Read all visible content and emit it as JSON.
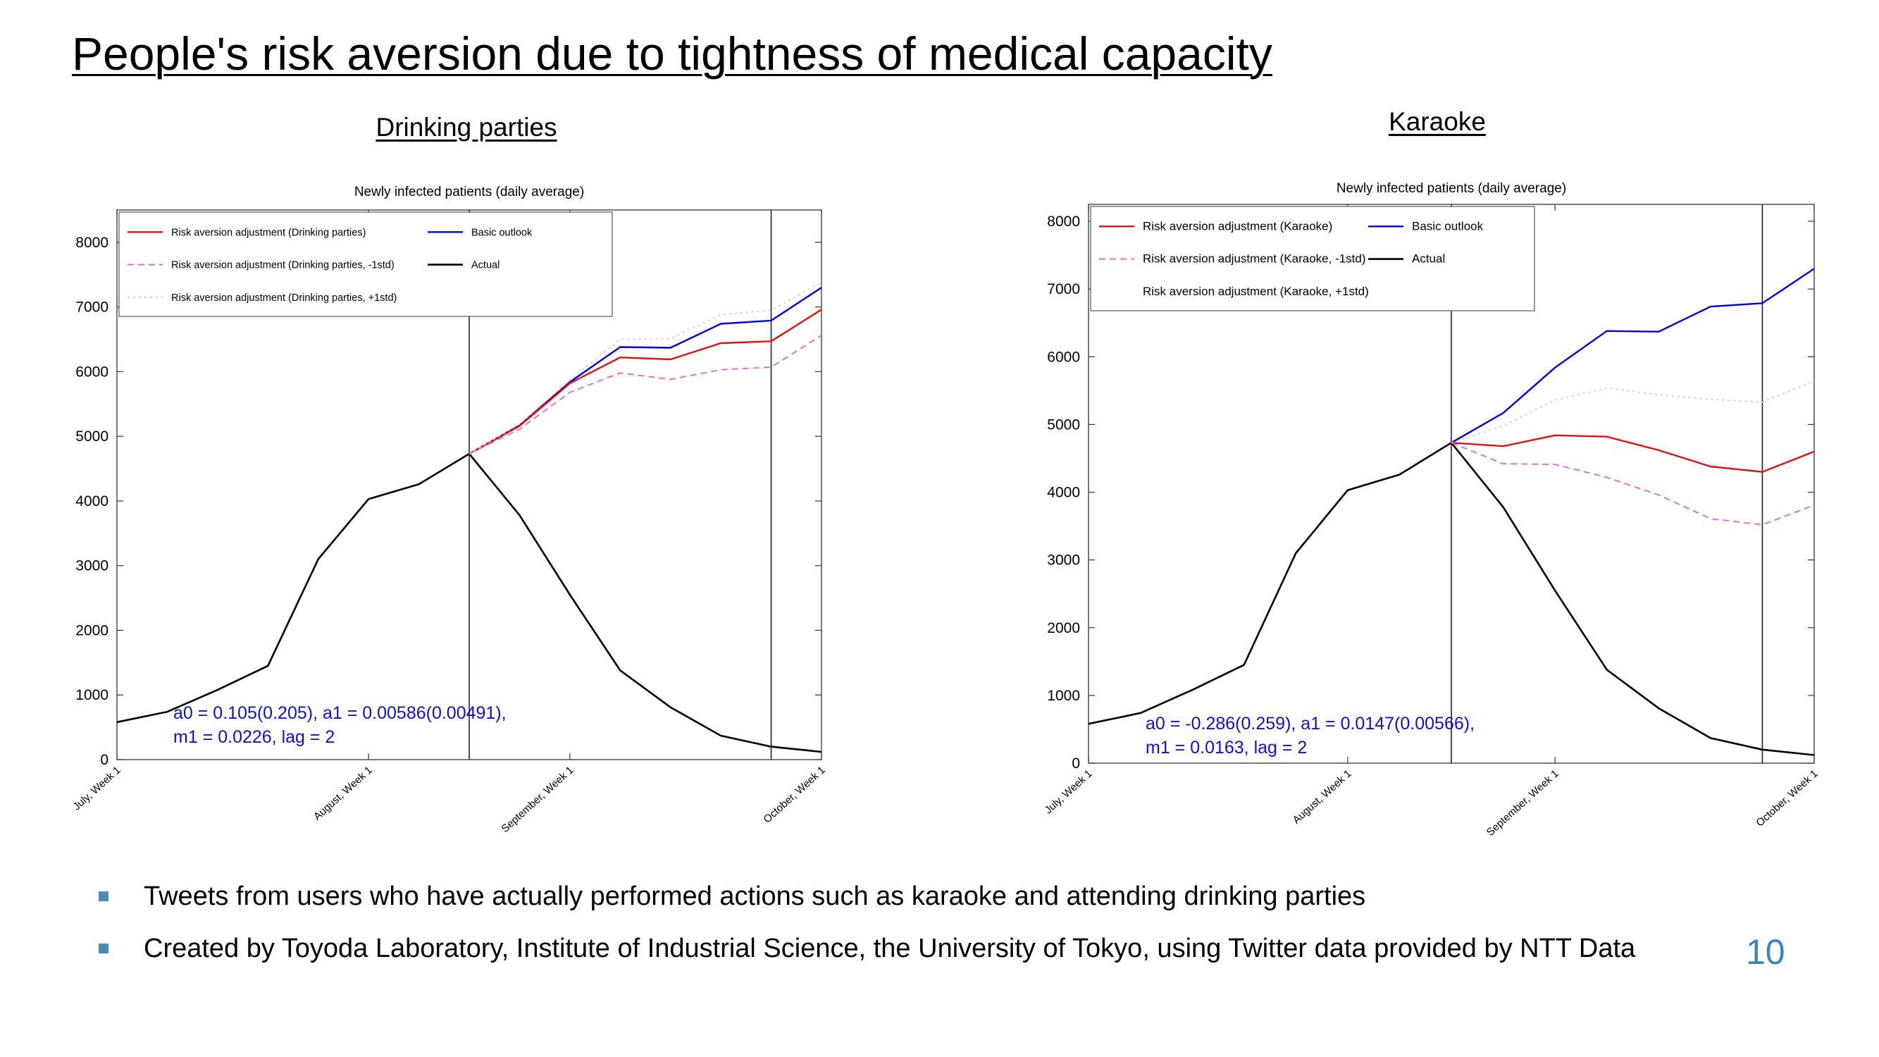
{
  "slide": {
    "title": "People's risk aversion due to tightness of medical capacity",
    "page_number": "10",
    "bullets": [
      "Tweets from users who have actually performed actions such as karaoke and attending drinking parties",
      "Created by Toyoda Laboratory, Institute of Industrial Science, the University of Tokyo, using Twitter data provided by NTT Data"
    ]
  },
  "colors": {
    "actual": "#000000",
    "basic_outlook": "#0000dd",
    "risk_adjusted": "#dd1111",
    "minus_1std": "#e066d8",
    "plus_1std": "#d8c8d8",
    "annotation": "#1010c8",
    "bullet_marker": "#4a8ab5",
    "page_number": "#3b86b8"
  },
  "chart_data": [
    {
      "type": "line",
      "heading": "Drinking parties",
      "title": "Newly infected patients (daily average)",
      "x": [
        0,
        1,
        2,
        3,
        4,
        5,
        6,
        7,
        8,
        9,
        10,
        11,
        12,
        13,
        14
      ],
      "xlim": [
        0,
        14
      ],
      "x_tick_positions": [
        0,
        5,
        9,
        14
      ],
      "x_tick_labels": [
        "July, Week 1",
        "August, Week 1",
        "September, Week 1",
        "October, Week 1"
      ],
      "ylim": [
        0,
        8500
      ],
      "y_ticks": [
        0,
        1000,
        2000,
        3000,
        4000,
        5000,
        6000,
        7000,
        8000
      ],
      "vlines": [
        7,
        13
      ],
      "grid": false,
      "legend_position": "top-left",
      "legend_layout": [
        [
          "Risk aversion adjustment (Drinking parties)",
          "Basic outlook"
        ],
        [
          "Risk aversion adjustment (Drinking parties, -1std)",
          "Actual"
        ],
        [
          "Risk aversion adjustment (Drinking parties, +1std)"
        ]
      ],
      "annotation": [
        "a0 = 0.105(0.205), a1 = 0.00586(0.00491),",
        "m1 = 0.0226, lag = 2"
      ],
      "series": [
        {
          "name": "Actual",
          "role": "actual",
          "x": [
            0,
            1,
            2,
            3,
            4,
            5,
            6,
            7,
            8,
            9,
            10,
            11,
            12,
            13,
            14
          ],
          "values": [
            580,
            740,
            1080,
            1450,
            3100,
            4030,
            4260,
            4730,
            3780,
            2550,
            1380,
            810,
            370,
            200,
            120
          ]
        },
        {
          "name": "Basic outlook",
          "role": "basic",
          "x": [
            7,
            8,
            9,
            10,
            11,
            12,
            13,
            14
          ],
          "values": [
            4730,
            5170,
            5840,
            6380,
            6370,
            6740,
            6790,
            7300
          ]
        },
        {
          "name": "Risk aversion adjustment (Drinking parties)",
          "role": "adjusted",
          "x": [
            7,
            8,
            9,
            10,
            11,
            12,
            13,
            14
          ],
          "values": [
            4730,
            5160,
            5820,
            6220,
            6190,
            6440,
            6470,
            6960
          ]
        },
        {
          "name": "Risk aversion adjustment (Drinking parties, -1std)",
          "role": "minus",
          "x": [
            7,
            8,
            9,
            10,
            11,
            12,
            13,
            14
          ],
          "values": [
            4730,
            5110,
            5680,
            5980,
            5880,
            6030,
            6070,
            6560
          ]
        },
        {
          "name": "Risk aversion adjustment (Drinking parties, +1std)",
          "role": "plus",
          "x": [
            7,
            8,
            9,
            10,
            11,
            12,
            13,
            14
          ],
          "values": [
            4730,
            5190,
            5870,
            6500,
            6510,
            6880,
            6950,
            7380
          ]
        }
      ]
    },
    {
      "type": "line",
      "heading": "Karaoke",
      "title": "Newly infected patients (daily average)",
      "x": [
        0,
        1,
        2,
        3,
        4,
        5,
        6,
        7,
        8,
        9,
        10,
        11,
        12,
        13,
        14
      ],
      "xlim": [
        0,
        14
      ],
      "x_tick_positions": [
        0,
        5,
        9,
        14
      ],
      "x_tick_labels": [
        "July, Week 1",
        "August, Week 1",
        "September, Week 1",
        "October, Week 1"
      ],
      "ylim": [
        0,
        8250
      ],
      "y_ticks": [
        0,
        1000,
        2000,
        3000,
        4000,
        5000,
        6000,
        7000,
        8000
      ],
      "vlines": [
        7,
        13
      ],
      "grid": false,
      "legend_position": "top-left",
      "legend_layout": [
        [
          "Risk aversion adjustment (Karaoke)",
          "Basic outlook"
        ],
        [
          "Risk aversion adjustment (Karaoke, -1std)",
          "Actual"
        ],
        [
          "Risk aversion adjustment (Karaoke, +1std)"
        ]
      ],
      "annotation": [
        "a0 = -0.286(0.259), a1 = 0.0147(0.00566),",
        "m1 = 0.0163, lag = 2"
      ],
      "series": [
        {
          "name": "Actual",
          "role": "actual",
          "x": [
            0,
            1,
            2,
            3,
            4,
            5,
            6,
            7,
            8,
            9,
            10,
            11,
            12,
            13,
            14
          ],
          "values": [
            580,
            740,
            1080,
            1450,
            3100,
            4030,
            4260,
            4730,
            3780,
            2550,
            1380,
            810,
            370,
            200,
            120
          ]
        },
        {
          "name": "Basic outlook",
          "role": "basic",
          "x": [
            7,
            8,
            9,
            10,
            11,
            12,
            13,
            14
          ],
          "values": [
            4730,
            5170,
            5840,
            6380,
            6370,
            6740,
            6790,
            7300
          ]
        },
        {
          "name": "Risk aversion adjustment (Karaoke)",
          "role": "adjusted",
          "x": [
            7,
            8,
            9,
            10,
            11,
            12,
            13,
            14
          ],
          "values": [
            4730,
            4680,
            4840,
            4820,
            4620,
            4380,
            4300,
            4600
          ]
        },
        {
          "name": "Risk aversion adjustment (Karaoke, -1std)",
          "role": "minus",
          "x": [
            7,
            8,
            9,
            10,
            11,
            12,
            13,
            14
          ],
          "values": [
            4730,
            4420,
            4410,
            4220,
            3960,
            3610,
            3520,
            3810
          ]
        },
        {
          "name": "Risk aversion adjustment (Karaoke, +1std)",
          "role": "plus",
          "x": [
            7,
            8,
            9,
            10,
            11,
            12,
            13,
            14
          ],
          "values": [
            4730,
            4980,
            5360,
            5540,
            5440,
            5370,
            5330,
            5640
          ]
        }
      ]
    }
  ]
}
